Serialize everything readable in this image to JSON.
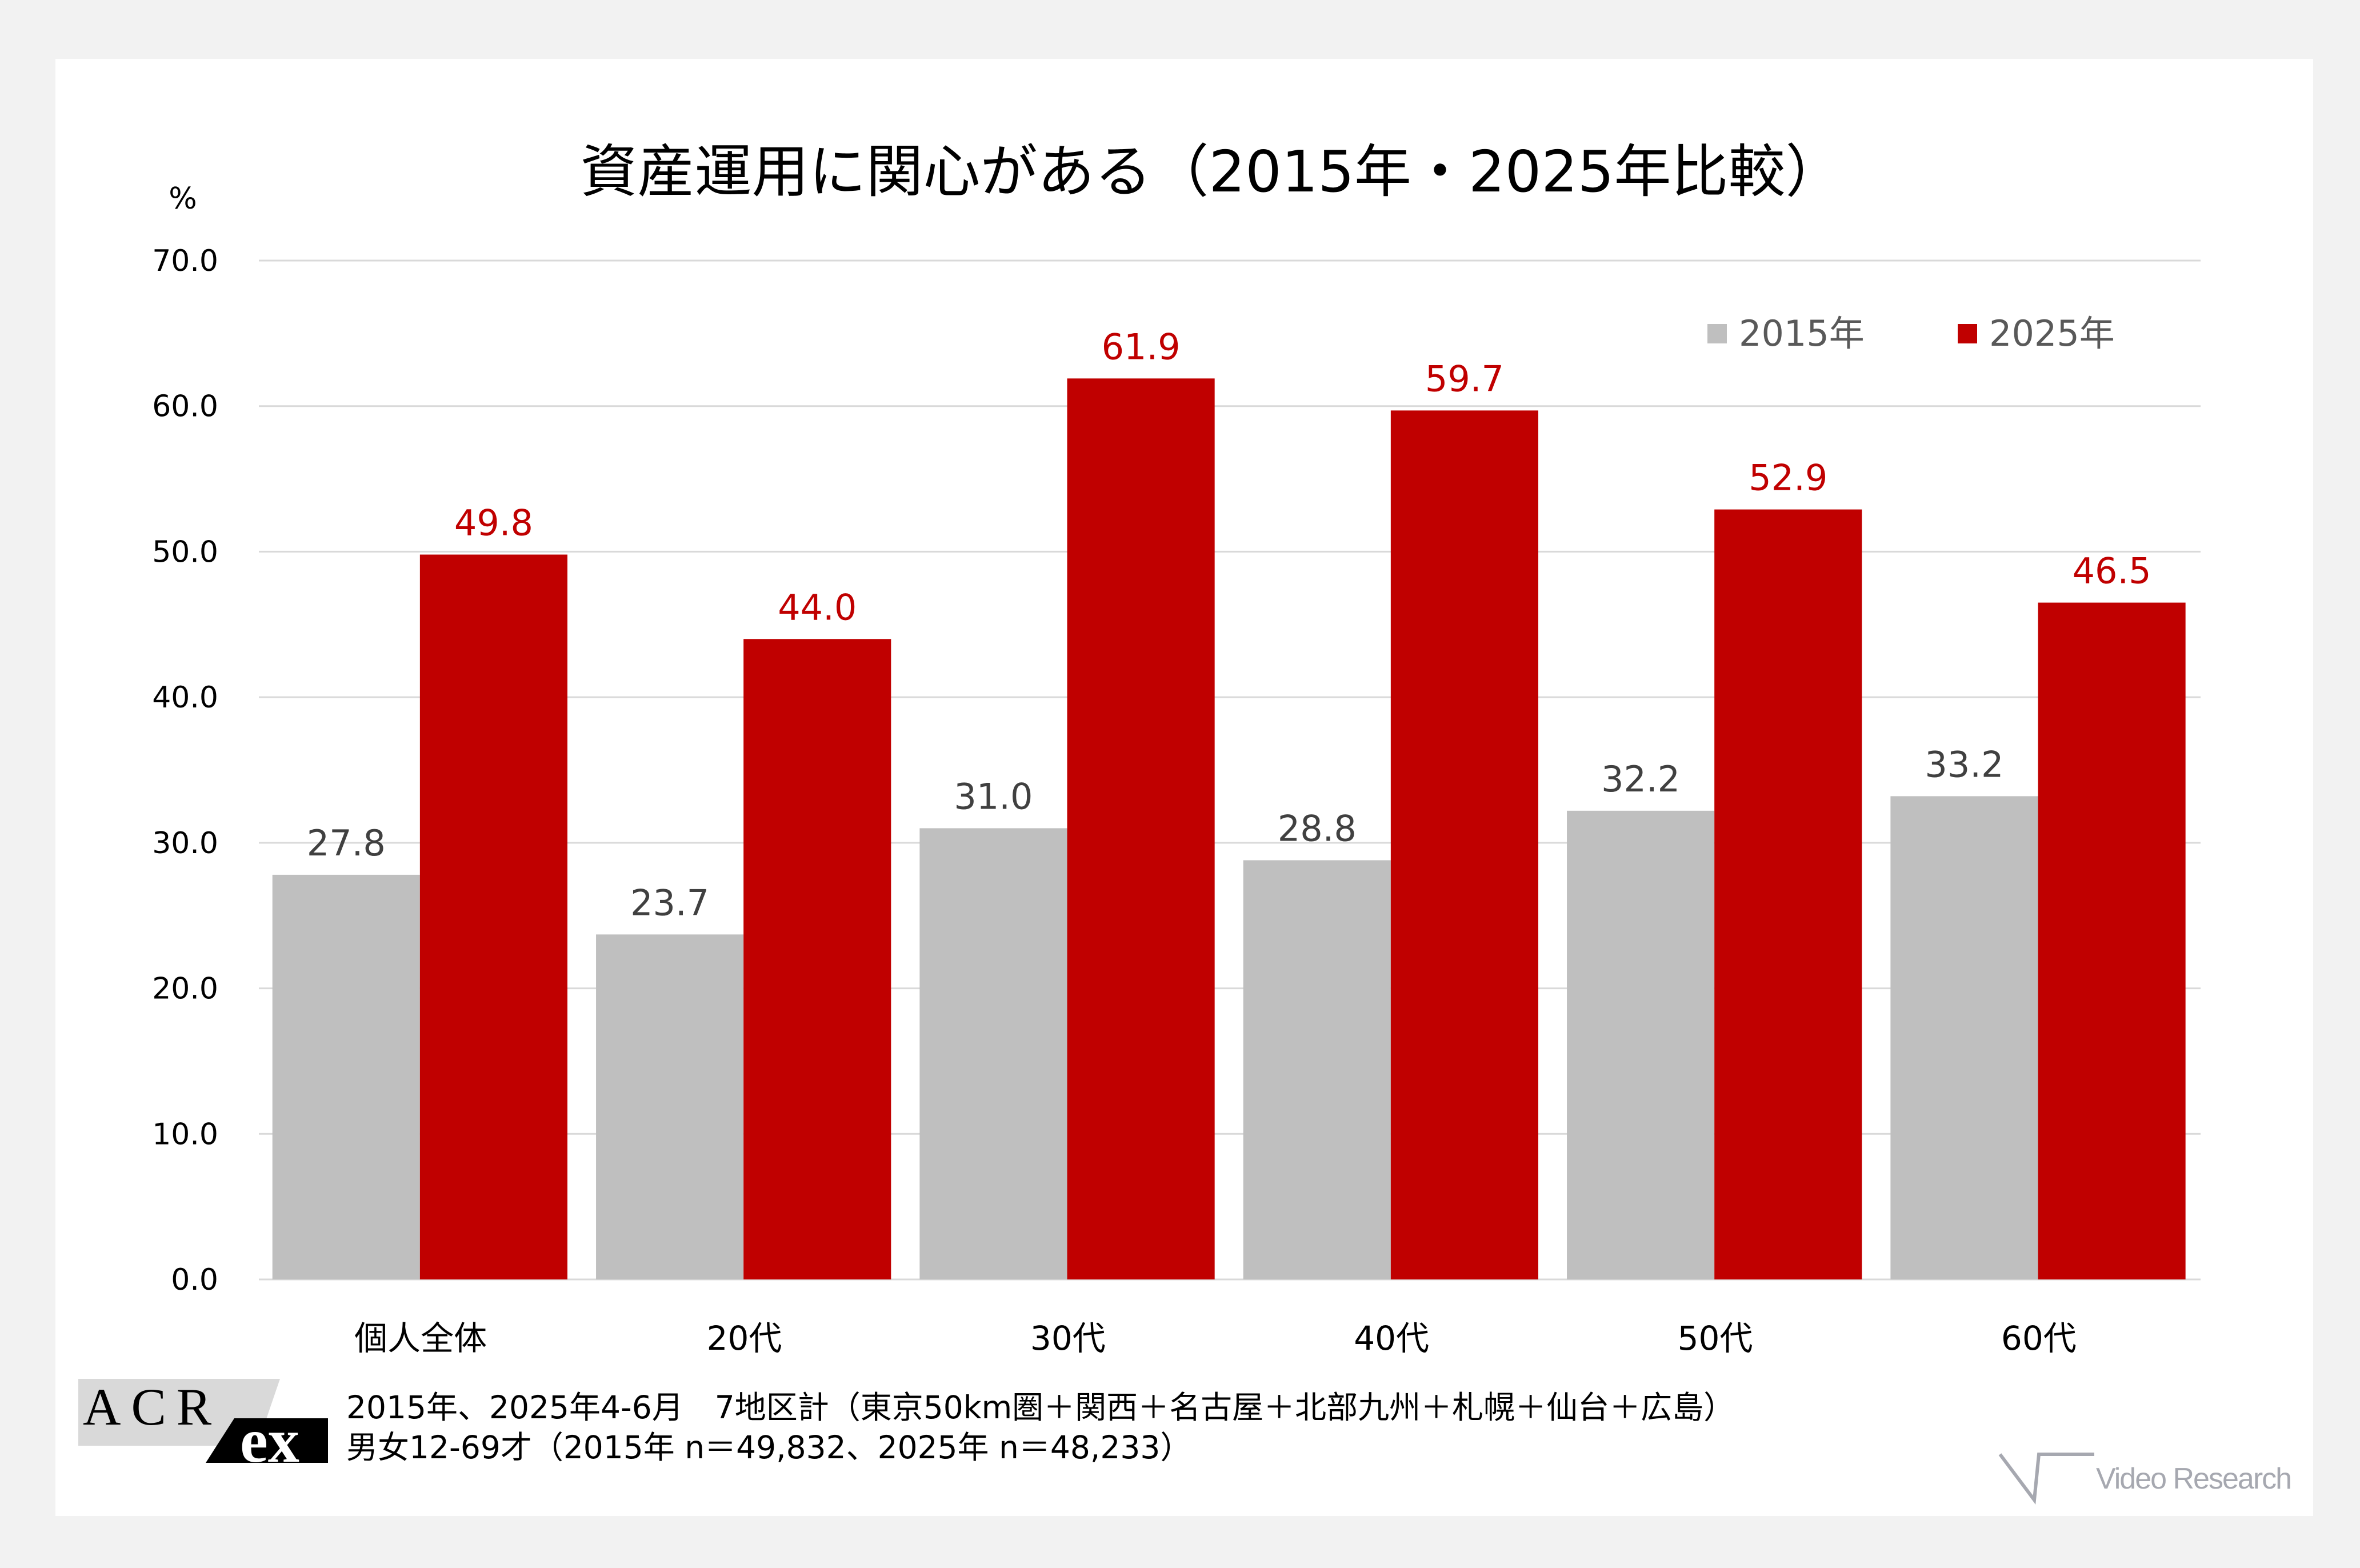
{
  "chart_data": {
    "type": "bar",
    "title": "資産運用に関心がある（2015年・2025年比較）",
    "ylabel": "%",
    "ylim": [
      0,
      70
    ],
    "yticks": [
      "0.0",
      "10.0",
      "20.0",
      "30.0",
      "40.0",
      "50.0",
      "60.0",
      "70.0"
    ],
    "grid": true,
    "legend_position": "top-right",
    "categories": [
      "個人全体",
      "20代",
      "30代",
      "40代",
      "50代",
      "60代"
    ],
    "series": [
      {
        "name": "2015年",
        "color": "#bfbfbf",
        "label_color": "#404040",
        "values": [
          27.8,
          23.7,
          31.0,
          28.8,
          32.2,
          33.2
        ],
        "labels": [
          "27.8",
          "23.7",
          "31.0",
          "28.8",
          "32.2",
          "33.2"
        ]
      },
      {
        "name": "2025年",
        "color": "#c00000",
        "label_color": "#c00000",
        "values": [
          49.8,
          44.0,
          61.9,
          59.7,
          52.9,
          46.5
        ],
        "labels": [
          "49.8",
          "44.0",
          "61.9",
          "59.7",
          "52.9",
          "46.5"
        ]
      }
    ]
  },
  "footer": {
    "note_line1": "2015年、2025年4-6月　7地区計（東京50km圏＋関西＋名古屋＋北部九州＋札幌＋仙台＋広島）",
    "note_line2": "男女12-69才（2015年 n＝49,832、2025年 n＝48,233）",
    "logo_left": "ACR ex",
    "logo_right": "Video Research"
  }
}
